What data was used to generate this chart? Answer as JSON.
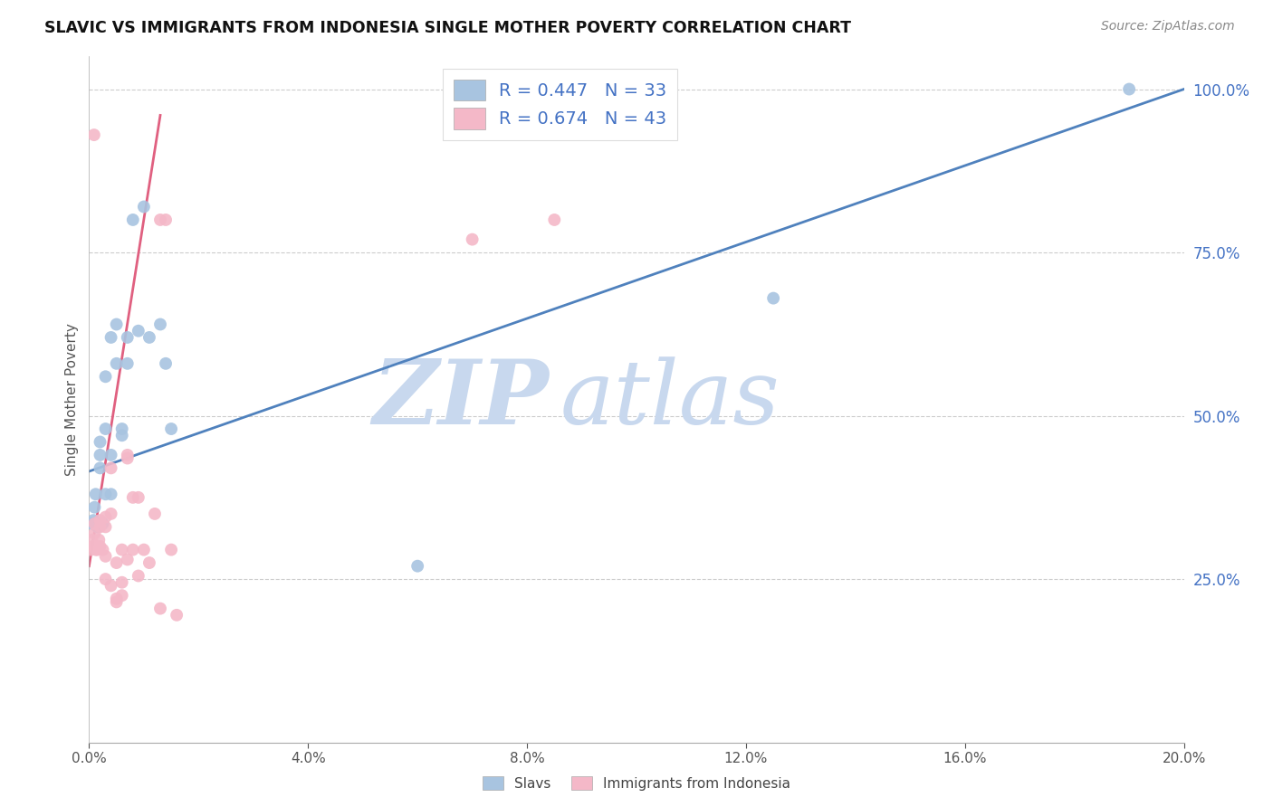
{
  "title": "SLAVIC VS IMMIGRANTS FROM INDONESIA SINGLE MOTHER POVERTY CORRELATION CHART",
  "source": "Source: ZipAtlas.com",
  "ylabel": "Single Mother Poverty",
  "legend_slavs": "Slavs",
  "legend_indonesia": "Immigrants from Indonesia",
  "r_slavs": 0.447,
  "n_slavs": 33,
  "r_indonesia": 0.674,
  "n_indonesia": 43,
  "color_slavs": "#a8c4e0",
  "color_slavs_line": "#4f81bd",
  "color_indonesia": "#f4b8c8",
  "color_indonesia_line": "#e06080",
  "color_text_blue": "#4472c4",
  "color_text_dark": "#333333",
  "watermark_zip_color": "#c8d8ee",
  "watermark_atlas_color": "#c8d8ee",
  "background_color": "#ffffff",
  "grid_color": "#cccccc",
  "x_min": 0.0,
  "x_max": 0.2,
  "y_min": 0.0,
  "y_max": 1.05,
  "slavs_x": [
    0.0005,
    0.0008,
    0.001,
    0.0012,
    0.0015,
    0.002,
    0.002,
    0.002,
    0.0025,
    0.003,
    0.003,
    0.003,
    0.004,
    0.004,
    0.004,
    0.005,
    0.005,
    0.006,
    0.006,
    0.007,
    0.007,
    0.008,
    0.009,
    0.01,
    0.011,
    0.013,
    0.014,
    0.015,
    0.06,
    0.125,
    0.19,
    0.0018,
    0.0022
  ],
  "slavs_y": [
    0.335,
    0.34,
    0.36,
    0.38,
    0.33,
    0.42,
    0.44,
    0.46,
    0.335,
    0.48,
    0.56,
    0.38,
    0.38,
    0.44,
    0.62,
    0.58,
    0.64,
    0.47,
    0.48,
    0.62,
    0.58,
    0.8,
    0.63,
    0.82,
    0.62,
    0.64,
    0.58,
    0.48,
    0.27,
    0.68,
    1.0,
    0.335,
    0.335
  ],
  "indonesia_x": [
    0.0003,
    0.0005,
    0.0007,
    0.001,
    0.001,
    0.0012,
    0.0015,
    0.0018,
    0.002,
    0.002,
    0.002,
    0.0025,
    0.003,
    0.003,
    0.003,
    0.003,
    0.004,
    0.004,
    0.004,
    0.005,
    0.005,
    0.005,
    0.006,
    0.006,
    0.006,
    0.007,
    0.007,
    0.007,
    0.008,
    0.008,
    0.009,
    0.009,
    0.01,
    0.011,
    0.012,
    0.013,
    0.013,
    0.014,
    0.015,
    0.016,
    0.07,
    0.085,
    0.0009
  ],
  "indonesia_y": [
    0.295,
    0.31,
    0.3,
    0.335,
    0.32,
    0.295,
    0.295,
    0.31,
    0.3,
    0.34,
    0.33,
    0.295,
    0.345,
    0.33,
    0.285,
    0.25,
    0.42,
    0.35,
    0.24,
    0.275,
    0.22,
    0.215,
    0.225,
    0.295,
    0.245,
    0.44,
    0.435,
    0.28,
    0.375,
    0.295,
    0.375,
    0.255,
    0.295,
    0.275,
    0.35,
    0.205,
    0.8,
    0.8,
    0.295,
    0.195,
    0.77,
    0.8,
    0.93
  ],
  "blue_line_x0": 0.0,
  "blue_line_y0": 0.415,
  "blue_line_x1": 0.2,
  "blue_line_y1": 1.0,
  "pink_line_x0": 0.0,
  "pink_line_y0": 0.27,
  "pink_line_x1": 0.013,
  "pink_line_y1": 0.96
}
